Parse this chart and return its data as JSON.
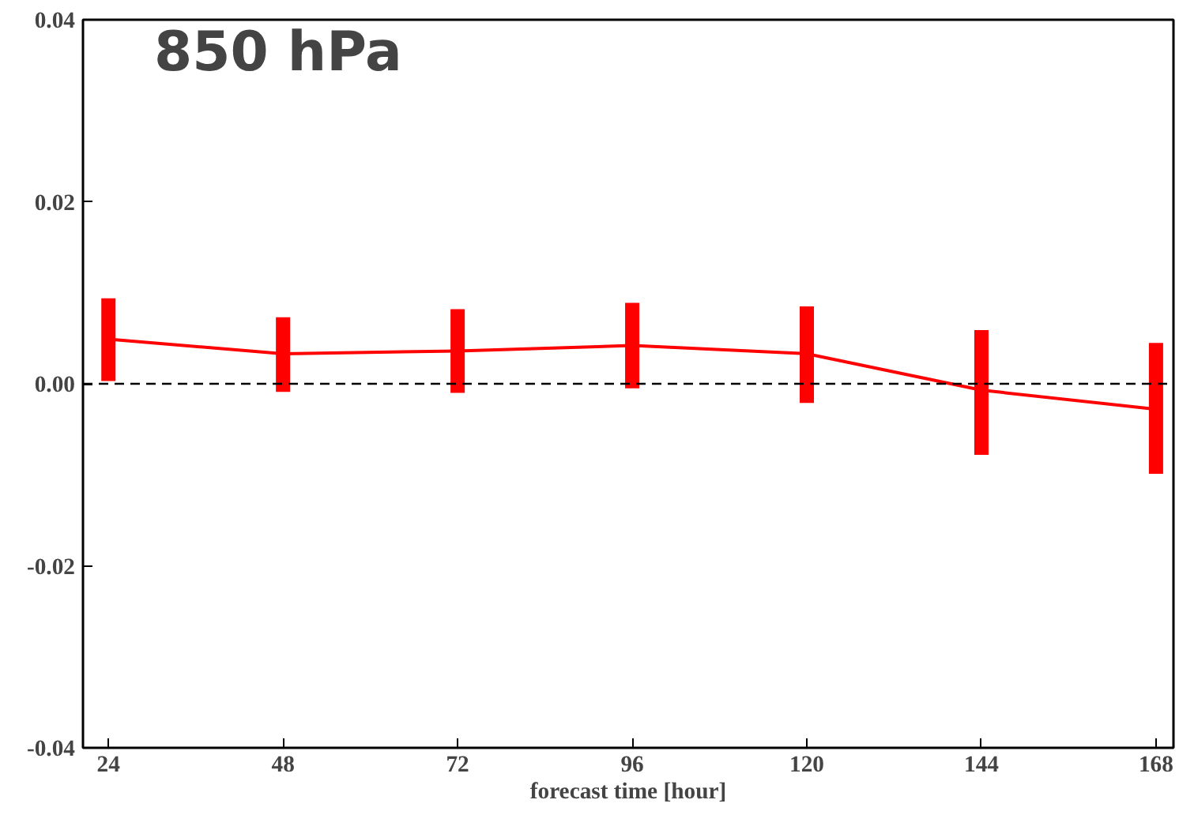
{
  "chart_data": {
    "type": "line",
    "xlabel": "forecast time [hour]",
    "x": [
      24,
      48,
      72,
      96,
      120,
      144,
      168
    ],
    "series": [
      {
        "color": "#ff0000",
        "values": [
          0.0049,
          0.0033,
          0.0036,
          0.0042,
          0.0033,
          -0.0007,
          -0.0028
        ],
        "errors": [
          [
            0.0003,
            0.0094
          ],
          [
            -0.0009,
            0.0073
          ],
          [
            -0.001,
            0.0082
          ],
          [
            -0.0005,
            0.0089
          ],
          [
            -0.0021,
            0.0085
          ],
          [
            -0.0078,
            0.0059
          ],
          [
            -0.0099,
            0.0045
          ]
        ]
      }
    ],
    "xlim": [
      20.5,
      170.4
    ],
    "xticks": [
      24,
      48,
      72,
      96,
      120,
      144,
      168
    ],
    "ylim": [
      -0.04,
      0.04
    ],
    "yticks": [
      {
        "value": -0.04,
        "label": "-0.04"
      },
      {
        "value": -0.02,
        "label": "-0.02"
      },
      {
        "value": 0,
        "label": "0.00"
      },
      {
        "value": 0.02,
        "label": "0.02"
      },
      {
        "value": 0.04,
        "label": "0.04"
      }
    ],
    "ref_lines": [
      {
        "axis": "y",
        "value": 0,
        "color": "#000000",
        "line_style": "dashed"
      }
    ],
    "annotations": [
      "850 hPa"
    ],
    "grid": false,
    "line_style": "solid"
  }
}
